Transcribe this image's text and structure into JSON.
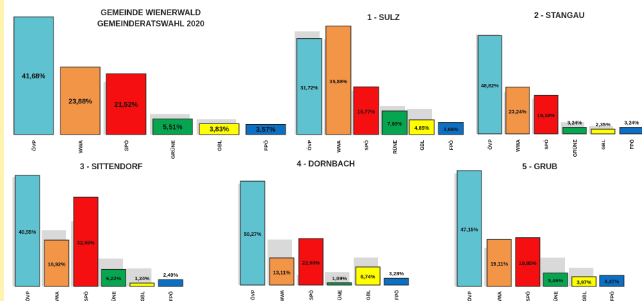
{
  "party_colors": {
    "ÖVP": "#5fc2d1",
    "WWA": "#f39547",
    "SPÖ": "#f50f10",
    "GRÜNE": "#06a550",
    "GBL": "#ffff00",
    "FPÖ": "#0b6fc4"
  },
  "ghost_color": "#d9d9d9",
  "chart_data": [
    {
      "type": "bar",
      "title": "GEMEINDE WIENERWALD",
      "subtitle": "GEMEINDERATSWAHL 2020",
      "categories": [
        "ÖVP",
        "WWA",
        "SPÖ",
        "GRÜNE",
        "GBL",
        "FPÖ"
      ],
      "values": [
        41.68,
        23.88,
        21.52,
        5.51,
        3.83,
        3.57
      ],
      "value_labels": [
        "41,68%",
        "23,88%",
        "21,52%",
        "5,51%",
        "3,83%",
        "3,57%"
      ],
      "previous_values": [
        null,
        null,
        18.7,
        7.3,
        5.4,
        null
      ],
      "ylim": [
        0,
        42
      ]
    },
    {
      "type": "bar",
      "title": "1 - SULZ",
      "categories": [
        "ÖVP",
        "WWA",
        "SPÖ",
        "RÜNE",
        "GBL",
        "FPÖ"
      ],
      "values": [
        31.72,
        35.88,
        15.77,
        7.8,
        4.85,
        3.99
      ],
      "value_labels": [
        "31,72%",
        "35,88%",
        "15,77%",
        "7,80%",
        "4,85%",
        "3,99%"
      ],
      "previous_values": [
        34.1,
        31.5,
        14.5,
        9.4,
        8.5,
        null
      ],
      "ylim": [
        0,
        36
      ]
    },
    {
      "type": "bar",
      "title": "2 - STANGAU",
      "categories": [
        "ÖVP",
        "WWA",
        "SPÖ",
        "GRÜNE",
        "GBL",
        "FPÖ"
      ],
      "values": [
        48.82,
        23.24,
        19.18,
        3.24,
        2.35,
        3.24
      ],
      "value_labels": [
        "48,82%",
        "23,24%",
        "19,18%",
        "3,24%",
        "2,35%",
        "3,24%"
      ],
      "previous_values": [
        49.5,
        20.8,
        17.5,
        5.8,
        3.8,
        null
      ],
      "ylim": [
        0,
        50
      ]
    },
    {
      "type": "bar",
      "title": "3 - SITTENDORF",
      "categories": [
        "ÖVP",
        "WWA",
        "SPÖ",
        "ÜNE",
        "GBL",
        "FPÖ"
      ],
      "values": [
        40.55,
        16.92,
        32.59,
        6.22,
        1.24,
        2.49
      ],
      "value_labels": [
        "40,55%",
        "16,92%",
        "32,59%",
        "6,22%",
        "1,24%",
        "2,49%"
      ],
      "previous_values": [
        40.0,
        20.5,
        23.8,
        10.2,
        6.6,
        null
      ],
      "ylim": [
        0,
        41
      ]
    },
    {
      "type": "bar",
      "title": "4 - DORNBACH",
      "categories": [
        "ÖVP",
        "WWA",
        "SPÖ",
        "ÜNE",
        "GBL",
        "FPÖ"
      ],
      "values": [
        50.27,
        13.11,
        22.5,
        1.09,
        8.74,
        3.28
      ],
      "value_labels": [
        "50,27%",
        "13,11%",
        "22,50%",
        "1,09%",
        "8,74%",
        "3,28%"
      ],
      "previous_values": [
        49.0,
        22.0,
        4.9,
        6.3,
        13.3,
        null
      ],
      "ylim": [
        0,
        51
      ]
    },
    {
      "type": "bar",
      "title": "5 - GRUB",
      "categories": [
        "ÖVP",
        "WWA",
        "SPÖ",
        "ÜNE",
        "GBL",
        "FPÖ"
      ],
      "values": [
        47.15,
        19.11,
        19.85,
        5.46,
        3.97,
        4.47
      ],
      "value_labels": [
        "47,15%",
        "19,11%",
        "19,85%",
        "5,46%",
        "3,97%",
        "4,47%"
      ],
      "previous_values": [
        46.0,
        15.7,
        null,
        11.7,
        7.6,
        null
      ],
      "ylim": [
        0,
        48
      ]
    }
  ]
}
